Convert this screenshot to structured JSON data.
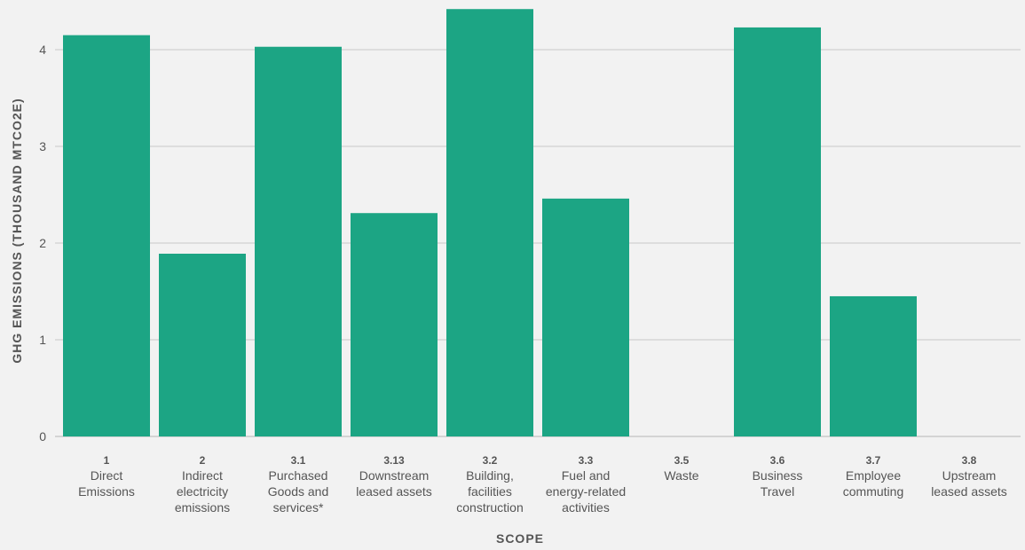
{
  "chart_data": {
    "type": "bar",
    "title": "",
    "xlabel": "SCOPE",
    "ylabel": "GHG EMISSIONS (THOUSAND MTCO2E)",
    "ylim": [
      0,
      4.4
    ],
    "yticks": [
      0,
      1,
      2,
      3,
      4
    ],
    "grid": true,
    "bar_color": "#1ca584",
    "categories": [
      {
        "code": "1",
        "name_lines": [
          "Direct",
          "Emissions"
        ]
      },
      {
        "code": "2",
        "name_lines": [
          "Indirect",
          "electricity",
          "emissions"
        ]
      },
      {
        "code": "3.1",
        "name_lines": [
          "Purchased",
          "Goods and",
          "services*"
        ]
      },
      {
        "code": "3.13",
        "name_lines": [
          "Downstream",
          "leased assets"
        ]
      },
      {
        "code": "3.2",
        "name_lines": [
          "Building,",
          "facilities",
          "construction"
        ]
      },
      {
        "code": "3.3",
        "name_lines": [
          "Fuel and",
          "energy-related",
          "activities"
        ]
      },
      {
        "code": "3.5",
        "name_lines": [
          "Waste"
        ]
      },
      {
        "code": "3.6",
        "name_lines": [
          "Business",
          "Travel"
        ]
      },
      {
        "code": "3.7",
        "name_lines": [
          "Employee",
          "commuting"
        ]
      },
      {
        "code": "3.8",
        "name_lines": [
          "Upstream",
          "leased assets"
        ]
      }
    ],
    "values": [
      4.15,
      1.89,
      4.03,
      2.31,
      4.42,
      2.46,
      0,
      4.23,
      1.45,
      0
    ]
  }
}
